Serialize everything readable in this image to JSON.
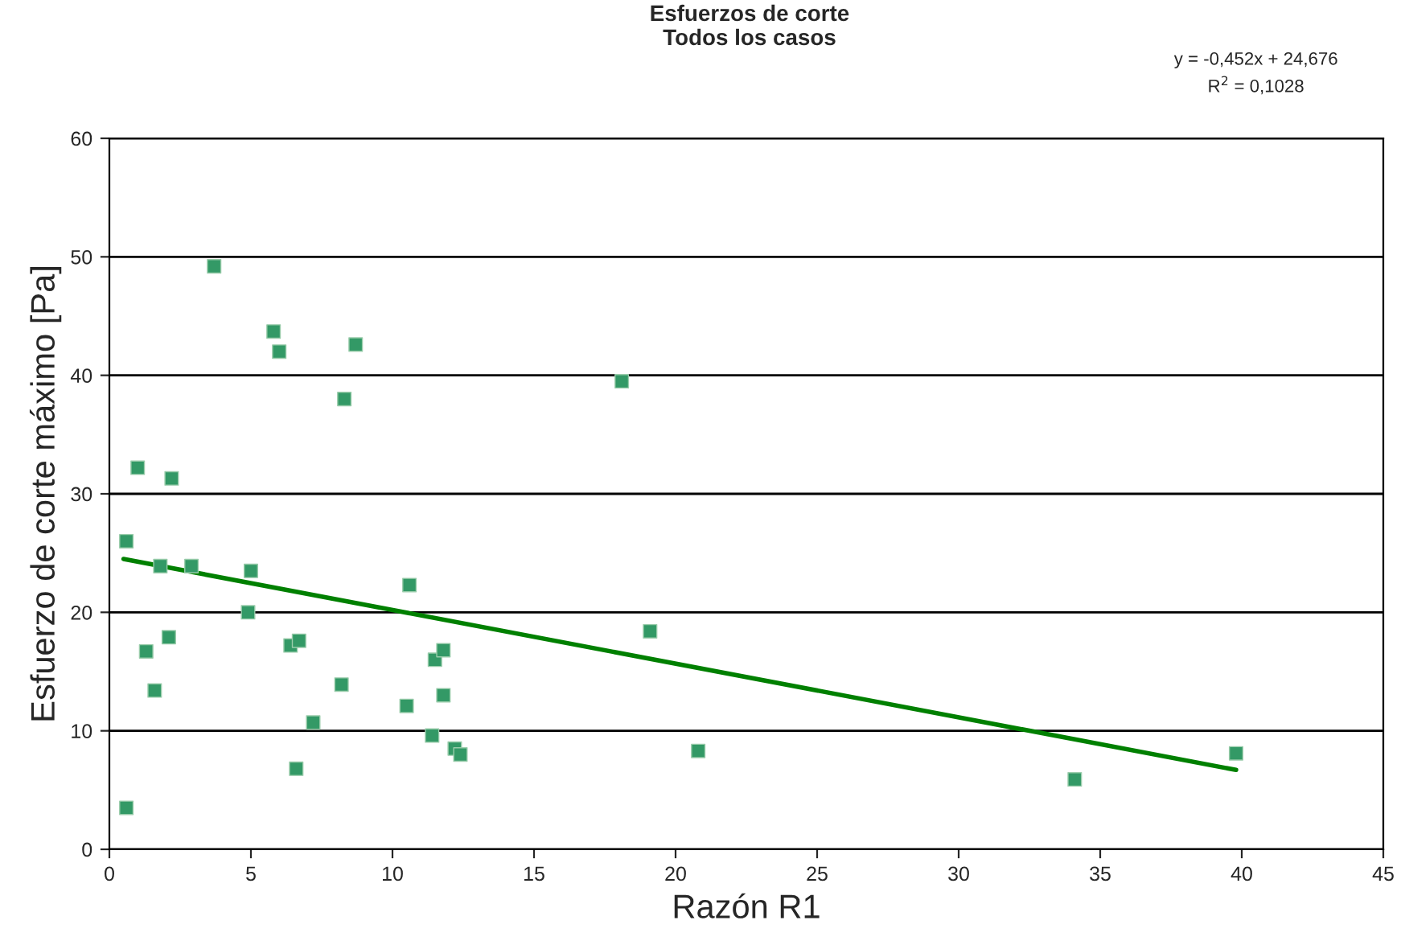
{
  "chart_data": {
    "type": "scatter",
    "title": "Esfuerzos de corte\nTodos los casos",
    "xlabel": "Razón R1",
    "ylabel": "Esfuerzo de corte máximo [Pa]",
    "annotations": [
      "y = -0,452x + 24,676\nR$^{2}$ = 0,1028"
    ],
    "xlim": [
      0,
      45
    ],
    "xticks": [
      0,
      5,
      10,
      15,
      20,
      25,
      30,
      35,
      40,
      45
    ],
    "ylim": [
      0,
      60
    ],
    "yticks": [
      0,
      10,
      20,
      30,
      40,
      50,
      60
    ],
    "grid": "y",
    "legend": false,
    "marker": "square",
    "series": [
      {
        "color": "#339966",
        "x": [
          0.6,
          0.6,
          1.0,
          1.3,
          1.6,
          1.8,
          2.1,
          2.2,
          2.9,
          3.7,
          4.9,
          5.0,
          5.8,
          6.0,
          6.4,
          6.6,
          6.7,
          7.2,
          8.2,
          8.3,
          8.7,
          10.5,
          10.6,
          11.4,
          11.5,
          11.8,
          11.8,
          12.2,
          12.4,
          18.1,
          19.1,
          20.8,
          34.1,
          39.8
        ],
        "values": [
          3.5,
          26,
          32.2,
          16.7,
          13.4,
          23.9,
          17.9,
          31.3,
          23.9,
          49.2,
          20,
          23.5,
          43.7,
          42,
          17.2,
          6.8,
          17.6,
          10.7,
          13.9,
          38,
          42.6,
          12.1,
          22.3,
          9.6,
          16,
          13,
          16.8,
          8.5,
          8,
          39.5,
          18.4,
          8.3,
          5.9,
          8.1
        ]
      },
      {
        "type": "line",
        "color": "#008000",
        "x": [
          0.5,
          39.8
        ],
        "values": [
          24.5,
          6.7
        ],
        "line_style": "solid",
        "marker": "none"
      }
    ]
  }
}
